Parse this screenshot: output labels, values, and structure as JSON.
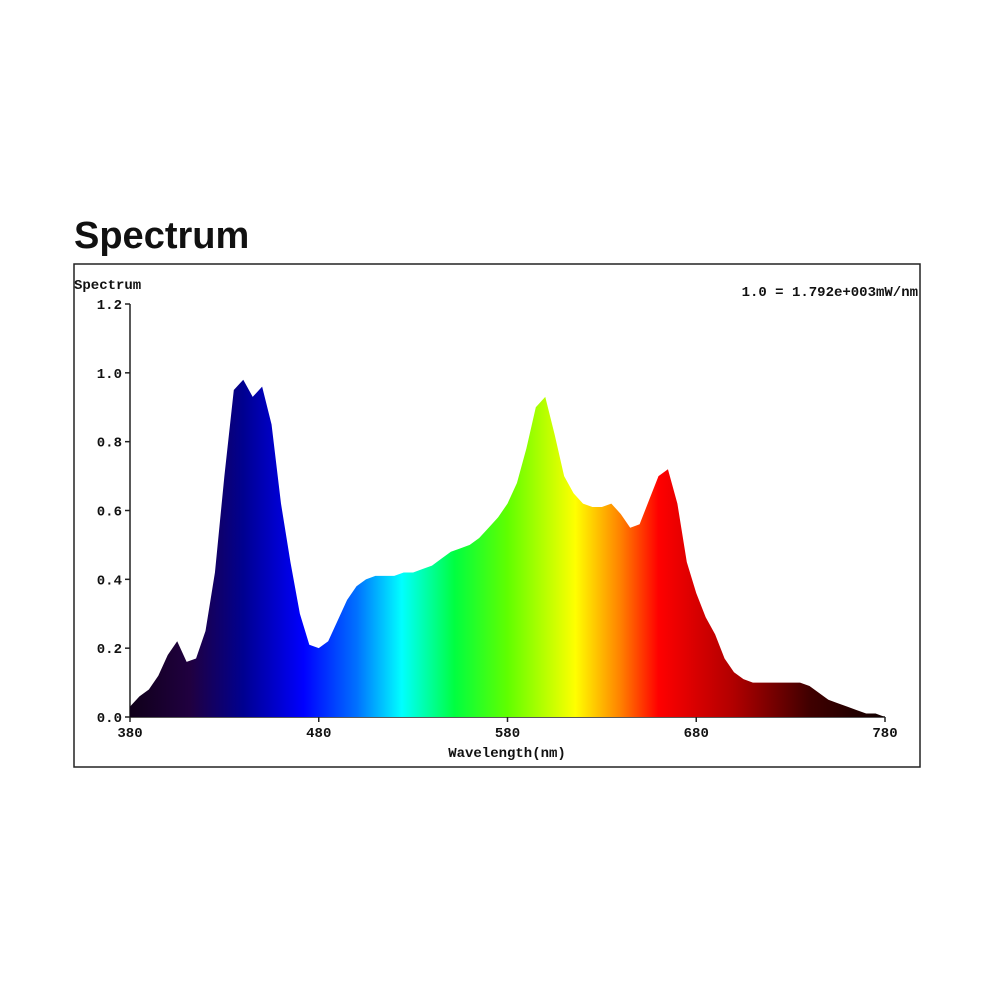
{
  "chart_data": {
    "type": "area",
    "title": "Spectrum",
    "ylabel": "Spectrum",
    "xlabel": "Wavelength(nm)",
    "annotation": "1.0 = 1.792e+003mW/nm",
    "x": [
      380,
      385,
      390,
      395,
      400,
      405,
      410,
      415,
      420,
      425,
      430,
      435,
      440,
      445,
      450,
      455,
      460,
      465,
      470,
      475,
      480,
      485,
      490,
      495,
      500,
      505,
      510,
      515,
      520,
      525,
      530,
      535,
      540,
      545,
      550,
      555,
      560,
      565,
      570,
      575,
      580,
      585,
      590,
      595,
      600,
      605,
      610,
      615,
      620,
      625,
      630,
      635,
      640,
      645,
      650,
      655,
      660,
      665,
      670,
      675,
      680,
      685,
      690,
      695,
      700,
      705,
      710,
      715,
      720,
      725,
      730,
      735,
      740,
      745,
      750,
      755,
      760,
      765,
      770,
      775,
      780
    ],
    "values": [
      0.03,
      0.06,
      0.08,
      0.12,
      0.18,
      0.22,
      0.16,
      0.17,
      0.25,
      0.42,
      0.7,
      0.95,
      0.98,
      0.93,
      0.96,
      0.85,
      0.62,
      0.45,
      0.3,
      0.21,
      0.2,
      0.22,
      0.28,
      0.34,
      0.38,
      0.4,
      0.41,
      0.41,
      0.41,
      0.42,
      0.42,
      0.43,
      0.44,
      0.46,
      0.48,
      0.49,
      0.5,
      0.52,
      0.55,
      0.58,
      0.62,
      0.68,
      0.78,
      0.9,
      0.93,
      0.82,
      0.7,
      0.65,
      0.62,
      0.61,
      0.61,
      0.62,
      0.59,
      0.55,
      0.56,
      0.63,
      0.7,
      0.72,
      0.62,
      0.45,
      0.36,
      0.29,
      0.24,
      0.17,
      0.13,
      0.11,
      0.1,
      0.1,
      0.1,
      0.1,
      0.1,
      0.1,
      0.09,
      0.07,
      0.05,
      0.04,
      0.03,
      0.02,
      0.01,
      0.01,
      0.0
    ],
    "xlim": [
      380,
      780
    ],
    "ylim": [
      0,
      1.2
    ],
    "xticks": [
      380,
      480,
      580,
      680,
      780
    ],
    "yticks": [
      {
        "value": 0,
        "label": "0.0"
      },
      0.2,
      0.4,
      0.6,
      0.8,
      {
        "value": 1,
        "label": "1.0"
      },
      1.2
    ]
  }
}
